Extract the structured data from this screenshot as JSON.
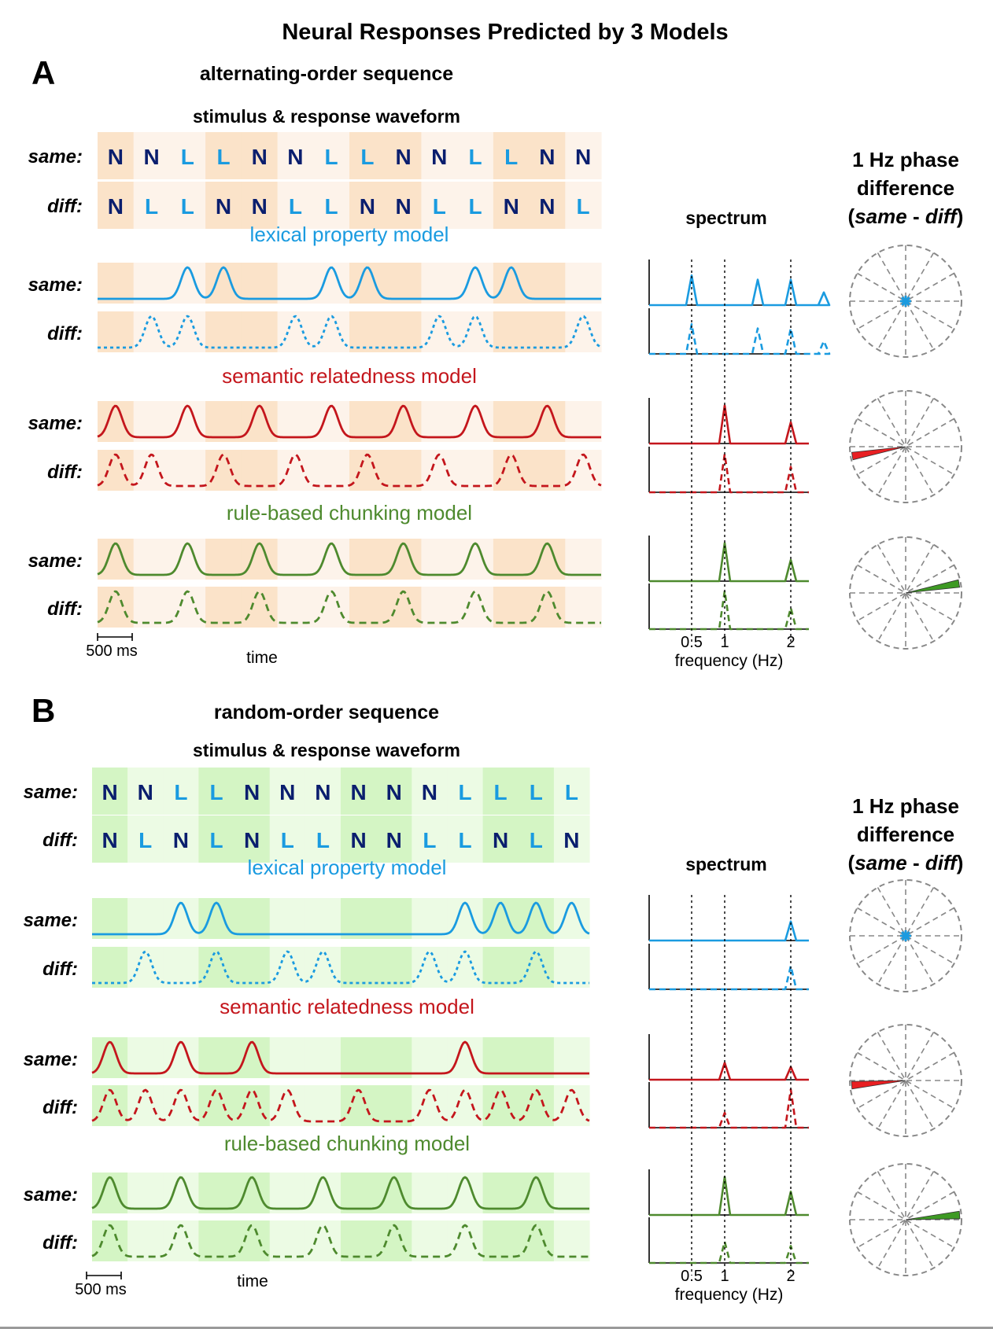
{
  "title": "Neural Responses Predicted by 3 Models",
  "colors": {
    "lexical": "#1a9be0",
    "semantic": "#c4161c",
    "chunking": "#4e8a2e",
    "N_letter": "#0a1e6e",
    "L_letter": "#1a9be0",
    "panel_a_band_dark": "#fbe3c9",
    "panel_a_band_light": "#fdf3ea",
    "panel_b_band_dark": "#d4f5c4",
    "panel_b_band_light": "#ecfbe4",
    "arrow_semantic": "#e81f22",
    "arrow_chunking": "#3e9a24"
  },
  "labels": {
    "same": "same:",
    "diff": "diff:",
    "time": "time",
    "scale": "500 ms",
    "spectrum": "spectrum",
    "freq_axis": "frequency (Hz)",
    "freq_ticks": [
      "0.5",
      "1",
      "2"
    ],
    "phase_line1": "1 Hz phase",
    "phase_line2": "difference",
    "phase_line3_open": "(",
    "phase_line3_same": "same",
    "phase_line3_minus": " - ",
    "phase_line3_diff": "diff",
    "phase_line3_close": ")",
    "stimulus_header": "stimulus & response waveform",
    "models": [
      "lexical property model",
      "semantic relatedness model",
      "rule-based chunking model"
    ]
  },
  "panels": [
    {
      "letter": "A",
      "subtitle": "alternating-order sequence",
      "same_sequence": [
        "N",
        "N",
        "L",
        "L",
        "N",
        "N",
        "L",
        "L",
        "N",
        "N",
        "L",
        "L",
        "N",
        "N"
      ],
      "diff_sequence": [
        "N",
        "L",
        "L",
        "N",
        "N",
        "L",
        "L",
        "N",
        "N",
        "L",
        "L",
        "N",
        "N",
        "L"
      ],
      "phase": {
        "lexical": null,
        "semantic": 190,
        "chunking": 10
      }
    },
    {
      "letter": "B",
      "subtitle": "random-order sequence",
      "same_sequence": [
        "N",
        "N",
        "L",
        "L",
        "N",
        "N",
        "N",
        "N",
        "N",
        "N",
        "L",
        "L",
        "L",
        "L"
      ],
      "diff_sequence": [
        "N",
        "L",
        "N",
        "L",
        "N",
        "L",
        "L",
        "N",
        "N",
        "L",
        "L",
        "N",
        "L",
        "N"
      ],
      "phase": {
        "lexical": null,
        "semantic": 185,
        "chunking": 5
      }
    }
  ],
  "waveforms": {
    "A": {
      "lexical": {
        "same_peaks": [
          2.5,
          3.5,
          6.5,
          7.5,
          10.5,
          11.5
        ],
        "diff_peaks": [
          1.5,
          2.5,
          5.5,
          6.5,
          9.5,
          10.5,
          13.5
        ]
      },
      "semantic": {
        "same_peaks": [
          0.5,
          2.5,
          4.5,
          6.5,
          8.5,
          10.5,
          12.5
        ],
        "diff_peaks": [
          0.5,
          1.5,
          3.5,
          5.5,
          7.5,
          9.5,
          11.5,
          13.5
        ]
      },
      "chunking": {
        "same_peaks": [
          0.5,
          2.5,
          4.5,
          6.5,
          8.5,
          10.5,
          12.5
        ],
        "diff_peaks": [
          0.5,
          2.5,
          4.5,
          6.5,
          8.5,
          10.5,
          12.5
        ]
      }
    },
    "B": {
      "lexical": {
        "same_peaks": [
          2.5,
          3.5,
          10.5,
          11.5,
          12.5,
          13.5
        ],
        "diff_peaks": [
          1.5,
          3.5,
          5.5,
          6.5,
          9.5,
          10.5,
          12.5
        ]
      },
      "semantic": {
        "same_peaks": [
          0.5,
          2.5,
          4.5,
          10.5
        ],
        "diff_peaks": [
          0.5,
          1.5,
          2.5,
          3.5,
          4.5,
          5.5,
          7.5,
          9.5,
          10.5,
          11.5,
          12.5,
          13.5
        ]
      },
      "chunking": {
        "same_peaks": [
          0.5,
          2.5,
          4.5,
          6.5,
          8.5,
          10.5,
          12.5
        ],
        "diff_peaks": [
          0.5,
          2.5,
          4.5,
          6.5,
          8.5,
          10.5,
          12.5
        ]
      }
    }
  },
  "spectra": {
    "A": {
      "lexical": {
        "same": [
          [
            0.5,
            0.7
          ],
          [
            1.5,
            0.6
          ],
          [
            2,
            0.6
          ],
          [
            2.5,
            0.3
          ]
        ],
        "diff": [
          [
            0.5,
            0.7
          ],
          [
            1.5,
            0.6
          ],
          [
            2,
            0.6
          ],
          [
            2.5,
            0.3
          ]
        ]
      },
      "semantic": {
        "same": [
          [
            1,
            0.9
          ],
          [
            2,
            0.5
          ]
        ],
        "diff": [
          [
            1,
            0.9
          ],
          [
            2,
            0.6
          ]
        ]
      },
      "chunking": {
        "same": [
          [
            1,
            0.9
          ],
          [
            2,
            0.5
          ]
        ],
        "diff": [
          [
            1,
            0.9
          ],
          [
            2,
            0.5
          ]
        ]
      }
    },
    "B": {
      "lexical": {
        "same": [
          [
            2,
            0.45
          ]
        ],
        "diff": [
          [
            2,
            0.55
          ]
        ]
      },
      "semantic": {
        "same": [
          [
            1,
            0.4
          ],
          [
            2,
            0.3
          ]
        ],
        "diff": [
          [
            1,
            0.35
          ],
          [
            2,
            0.9
          ]
        ]
      },
      "chunking": {
        "same": [
          [
            1,
            0.9
          ],
          [
            2,
            0.55
          ]
        ],
        "diff": [
          [
            1,
            0.5
          ],
          [
            2,
            0.4
          ]
        ]
      }
    }
  }
}
